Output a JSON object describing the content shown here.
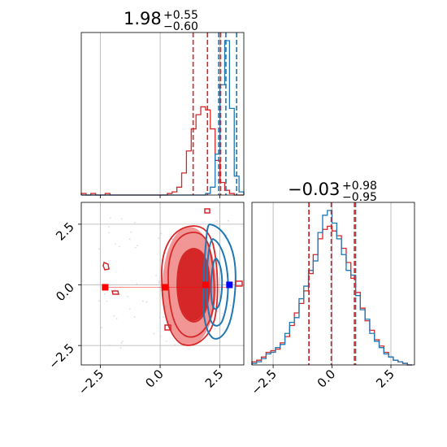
{
  "colors": {
    "red": "#d62728",
    "blue": "#1f77b4",
    "red_fill_light": "#f08a8a",
    "red_fill_dark": "#d62728",
    "grid": "#b0b0b0",
    "marker_red": "#ff0000",
    "marker_blue": "#0000ff"
  },
  "chart_data": {
    "type": "corner",
    "params": [
      {
        "title_main": "1.98",
        "title_plus": "+0.55",
        "title_minus": "−0.60",
        "quantiles_red": [
          1.38,
          1.98,
          2.53
        ],
        "quantiles_blue": [
          2.45,
          2.75,
          3.2
        ],
        "xlim": [
          -3.3,
          3.5
        ]
      },
      {
        "title_main": "−0.03",
        "title_plus": "+0.98",
        "title_minus": "−0.95",
        "quantiles_red": [
          -0.98,
          -0.03,
          0.95
        ],
        "quantiles_blue": [
          -0.98,
          -0.03,
          1.0
        ],
        "xlim": [
          -3.4,
          3.5
        ]
      }
    ],
    "ylim_2d": [
      -3.3,
      3.4
    ],
    "ticks": [
      -2.5,
      0.0,
      2.5
    ],
    "tick_labels": [
      "−2.5",
      "0.0",
      "2.5"
    ],
    "marginal_1": {
      "bin_centers": [
        -3.2,
        -3.0,
        -2.8,
        -2.6,
        -2.4,
        -2.2,
        -2.0,
        -1.8,
        -1.6,
        -1.4,
        -1.2,
        -1.0,
        -0.8,
        -0.6,
        -0.4,
        -0.2,
        0.0,
        0.2,
        0.4,
        0.6,
        0.8,
        1.0,
        1.2,
        1.4,
        1.6,
        1.8,
        2.0,
        2.2,
        2.4,
        2.6,
        2.8,
        3.0,
        3.2,
        3.4
      ],
      "red": [
        1,
        0,
        1,
        0,
        0,
        1,
        0,
        0,
        0,
        0,
        0,
        0,
        0,
        0,
        0,
        0,
        0,
        0,
        1,
        2,
        5,
        14,
        28,
        42,
        51,
        56,
        54,
        42,
        22,
        8,
        3,
        1,
        0,
        0
      ],
      "blue": [
        0,
        0,
        0,
        0,
        0,
        0,
        0,
        0,
        0,
        0,
        0,
        0,
        0,
        0,
        0,
        0,
        0,
        0,
        0,
        0,
        0,
        0,
        0,
        0,
        0,
        0,
        1,
        5,
        26,
        70,
        98,
        55,
        12,
        2
      ]
    },
    "marginal_2": {
      "bin_centers": [
        -3.3,
        -3.1,
        -2.9,
        -2.7,
        -2.5,
        -2.3,
        -2.1,
        -1.9,
        -1.7,
        -1.5,
        -1.3,
        -1.1,
        -0.9,
        -0.7,
        -0.5,
        -0.3,
        -0.1,
        0.1,
        0.3,
        0.5,
        0.7,
        0.9,
        1.1,
        1.3,
        1.5,
        1.7,
        1.9,
        2.1,
        2.3,
        2.5,
        2.7,
        2.9,
        3.1,
        3.3
      ],
      "red": [
        2,
        3,
        5,
        8,
        9,
        10,
        14,
        18,
        25,
        33,
        39,
        47,
        58,
        70,
        80,
        86,
        88,
        85,
        82,
        74,
        65,
        55,
        46,
        36,
        28,
        22,
        16,
        12,
        8,
        5,
        3,
        2,
        1,
        0
      ],
      "blue": [
        1,
        2,
        4,
        7,
        8,
        11,
        13,
        20,
        27,
        30,
        42,
        50,
        60,
        66,
        84,
        95,
        98,
        90,
        80,
        70,
        60,
        57,
        44,
        35,
        29,
        20,
        15,
        11,
        7,
        5,
        3,
        2,
        1,
        0
      ]
    },
    "markers_red": [
      [
        -2.3,
        -0.1
      ],
      [
        0.2,
        -0.1
      ],
      [
        1.9,
        0.0
      ]
    ],
    "marker_blue": [
      2.9,
      0.0
    ]
  }
}
